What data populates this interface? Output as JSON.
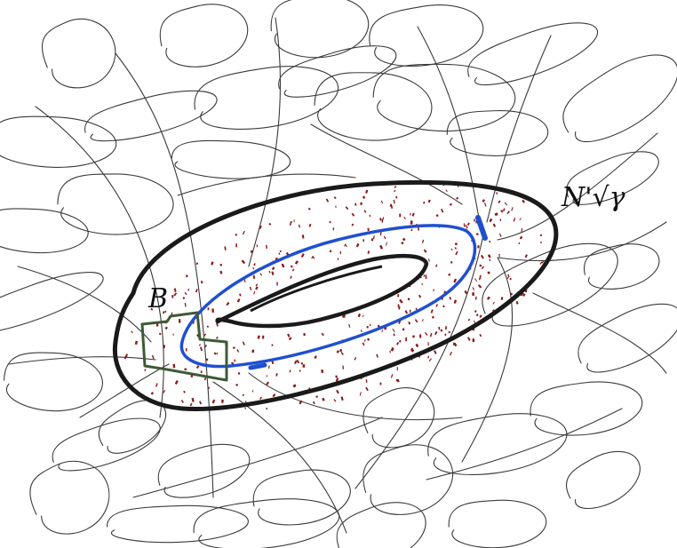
{
  "labels": {
    "neighborhood": "N'√γ",
    "box": "B"
  },
  "colors": {
    "ink": "#1a1a1a",
    "sketch": "#3a3a3a",
    "curve": "#1f4fd1",
    "box": "#3d5a35",
    "dots": "#8b1a1a"
  }
}
